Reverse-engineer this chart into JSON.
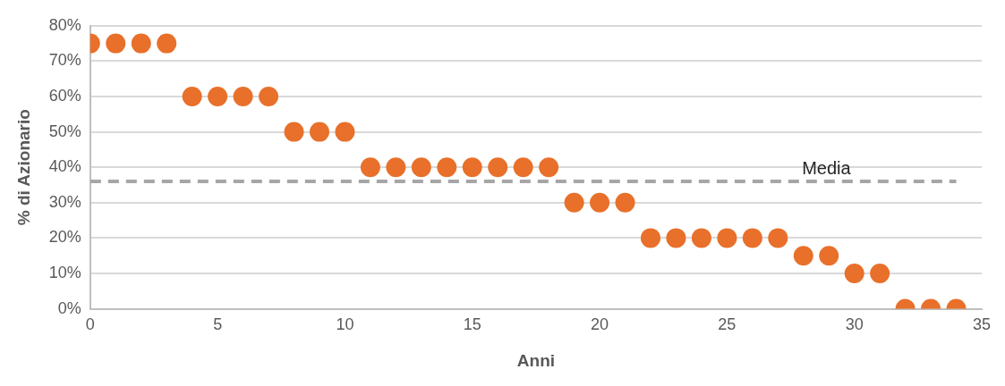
{
  "chart_data": {
    "type": "scatter",
    "xlabel": "Anni",
    "ylabel": "% di Azionario",
    "xlim": [
      0,
      35
    ],
    "xticks": [
      0,
      5,
      10,
      15,
      20,
      25,
      30,
      35
    ],
    "ylim": [
      0,
      80
    ],
    "yticks": [
      {
        "value": 0,
        "label": "0%"
      },
      {
        "value": 10,
        "label": "10%"
      },
      {
        "value": 20,
        "label": "20%"
      },
      {
        "value": 30,
        "label": "30%"
      },
      {
        "value": 40,
        "label": "40%"
      },
      {
        "value": 50,
        "label": "50%"
      },
      {
        "value": 60,
        "label": "60%"
      },
      {
        "value": 70,
        "label": "70%"
      },
      {
        "value": 80,
        "label": "80%"
      }
    ],
    "grid": "y",
    "legend": false,
    "marker": "circle",
    "series": [
      {
        "color": "#e8702a",
        "x": [
          0,
          1,
          2,
          3,
          4,
          5,
          6,
          7,
          8,
          9,
          10,
          11,
          12,
          13,
          14,
          15,
          16,
          17,
          18,
          19,
          20,
          21,
          22,
          23,
          24,
          25,
          26,
          27,
          28,
          29,
          30,
          31,
          32,
          33,
          34
        ],
        "values": [
          75,
          75,
          75,
          75,
          60,
          60,
          60,
          60,
          50,
          50,
          50,
          40,
          40,
          40,
          40,
          40,
          40,
          40,
          40,
          30,
          30,
          30,
          20,
          20,
          20,
          20,
          20,
          20,
          15,
          15,
          10,
          10,
          0,
          0,
          0
        ]
      },
      {
        "type": "line",
        "name": "Media",
        "color": "#a6a6a6",
        "line_style": "dashed",
        "marker": "none",
        "x": [
          0,
          34
        ],
        "values": [
          36,
          36
        ]
      }
    ]
  }
}
